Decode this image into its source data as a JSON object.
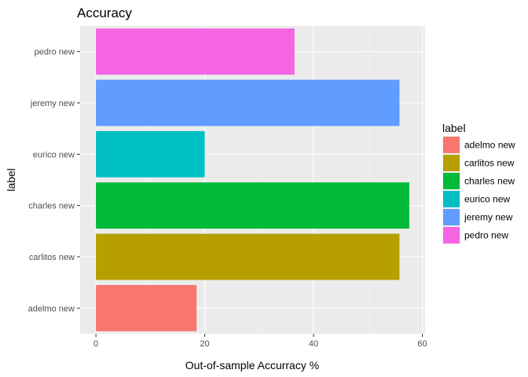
{
  "chart_data": {
    "type": "bar",
    "orientation": "horizontal",
    "title": "Accuracy",
    "xlabel": "Out-of-sample Accurracy %",
    "ylabel": "label",
    "categories": [
      "adelmo new",
      "carlitos new",
      "charles new",
      "eurico new",
      "jeremy new",
      "pedro new"
    ],
    "values": [
      18.5,
      55.8,
      57.6,
      20.0,
      55.8,
      36.5
    ],
    "colors": [
      "#F8766D",
      "#B79F00",
      "#00BA38",
      "#00BFC4",
      "#619CFF",
      "#F564E3"
    ],
    "xlim": [
      -2.9,
      60.5
    ],
    "xticks": [
      0,
      20,
      40,
      60
    ],
    "grid": true,
    "panel_background": "#EBEBEB",
    "legend": {
      "title": "label",
      "position": "right",
      "entries": [
        "adelmo new",
        "carlitos new",
        "charles new",
        "eurico new",
        "jeremy new",
        "pedro new"
      ]
    }
  }
}
